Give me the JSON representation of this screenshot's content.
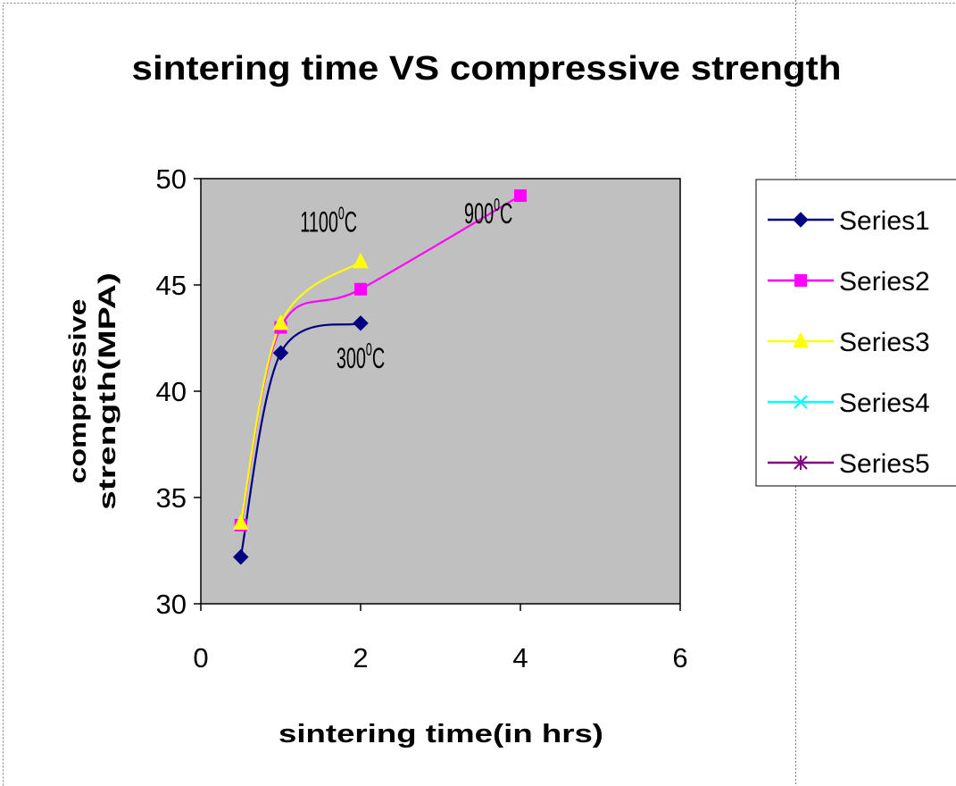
{
  "chart_data": {
    "type": "scatter",
    "title": "sintering time VS compressive strength",
    "xlabel": "sintering time(in hrs)",
    "ylabel_lines": [
      "compressive",
      "strength(MPA)"
    ],
    "xlim": [
      0,
      6
    ],
    "ylim": [
      30,
      50
    ],
    "x_ticks": [
      0,
      2,
      4,
      6
    ],
    "y_ticks": [
      30,
      35,
      40,
      45,
      50
    ],
    "grid": false,
    "plot_background": "#c0c0c0",
    "smoothed_lines": true,
    "legend_position": "right",
    "series": [
      {
        "name": "Series1",
        "color": "#000080",
        "marker": "diamond",
        "x": [
          0.5,
          1,
          2
        ],
        "y": [
          32.2,
          41.8,
          43.2
        ]
      },
      {
        "name": "Series2",
        "color": "#ff00ff",
        "marker": "square",
        "x": [
          0.5,
          1,
          2,
          4
        ],
        "y": [
          33.7,
          43.0,
          44.8,
          49.2
        ]
      },
      {
        "name": "Series3",
        "color": "#ffff00",
        "marker": "triangle",
        "x": [
          0.5,
          1,
          2
        ],
        "y": [
          33.8,
          43.2,
          46.1
        ]
      },
      {
        "name": "Series4",
        "color": "#00ffff",
        "marker": "x",
        "x": [],
        "y": []
      },
      {
        "name": "Series5",
        "color": "#800080",
        "marker": "star",
        "x": [],
        "y": []
      }
    ],
    "annotations": [
      {
        "base": "1100",
        "sup": "0",
        "unit": "C",
        "x": 1.6,
        "y": 47.5
      },
      {
        "base": "900",
        "sup": "0",
        "unit": "C",
        "x": 3.6,
        "y": 47.9
      },
      {
        "base": "300",
        "sup": "0",
        "unit": "C",
        "x": 2.0,
        "y": 41.1
      }
    ]
  }
}
